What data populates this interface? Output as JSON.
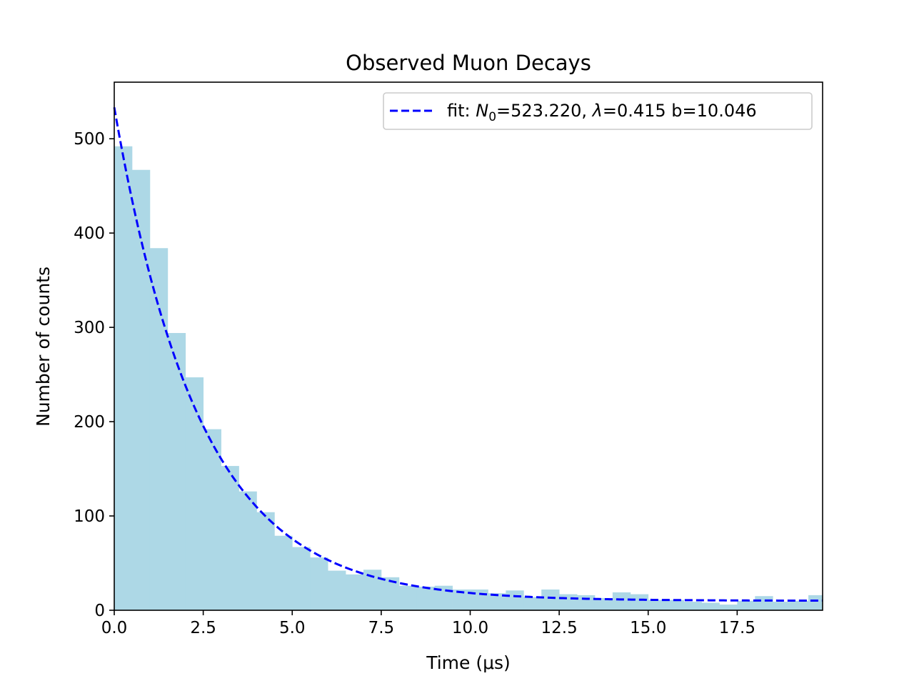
{
  "chart_data": {
    "type": "bar",
    "title": "Observed Muon Decays",
    "xlabel": "Time (μs)",
    "ylabel": "Number of counts",
    "xlim": [
      0,
      19.9
    ],
    "ylim": [
      0,
      560
    ],
    "grid": false,
    "xticks": [
      "0.0",
      "2.5",
      "5.0",
      "7.5",
      "10.0",
      "12.5",
      "15.0",
      "17.5"
    ],
    "yticks": [
      "0",
      "100",
      "200",
      "300",
      "400",
      "500"
    ],
    "histogram": {
      "bin_width": 0.5,
      "bin_start": 0,
      "color": "#add8e6",
      "values": [
        492,
        467,
        384,
        294,
        247,
        192,
        153,
        126,
        104,
        79,
        67,
        56,
        42,
        38,
        43,
        35,
        26,
        25,
        26,
        22,
        22,
        18,
        21,
        14,
        22,
        17,
        16,
        13,
        19,
        17,
        11,
        11,
        9,
        8,
        6,
        10,
        15,
        9,
        10,
        16
      ]
    },
    "fit": {
      "label_prefix": "fit: ",
      "label_n0_symbol": "N",
      "label_n0_sub": "0",
      "label_n0_value": "=523.220, ",
      "label_lambda_symbol": "λ",
      "label_rest": "=0.415 b=10.046",
      "N0": 523.22,
      "lambda": 0.415,
      "b": 10.046,
      "color": "#0000ff",
      "style": "dashed"
    },
    "legend_position": "top-right"
  }
}
